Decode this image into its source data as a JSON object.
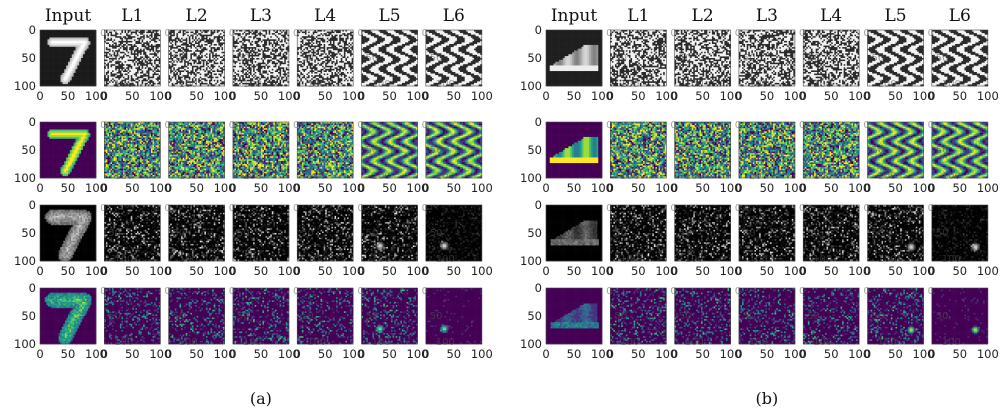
{
  "figure": {
    "panels": [
      {
        "caption": "(a)",
        "column_headers": [
          "Input",
          "L1",
          "L2",
          "L3",
          "L4",
          "L5",
          "L6"
        ],
        "input_subject": "digit-7",
        "rows": [
          {
            "colormap": "gray",
            "kind": "noise"
          },
          {
            "colormap": "viridis",
            "kind": "noise"
          },
          {
            "colormap": "gray",
            "kind": "saliency"
          },
          {
            "colormap": "viridis",
            "kind": "saliency"
          }
        ]
      },
      {
        "caption": "(b)",
        "column_headers": [
          "Input",
          "L1",
          "L2",
          "L3",
          "L4",
          "L5",
          "L6"
        ],
        "input_subject": "sneaker",
        "rows": [
          {
            "colormap": "gray",
            "kind": "noise"
          },
          {
            "colormap": "viridis",
            "kind": "noise"
          },
          {
            "colormap": "gray",
            "kind": "saliency"
          },
          {
            "colormap": "viridis",
            "kind": "saliency"
          }
        ]
      }
    ],
    "x_ticks": [
      "0",
      "50",
      "100"
    ],
    "y_ticks": [
      "0",
      "50",
      "100"
    ],
    "ghost_labels": [
      "0",
      "50",
      "100"
    ]
  }
}
